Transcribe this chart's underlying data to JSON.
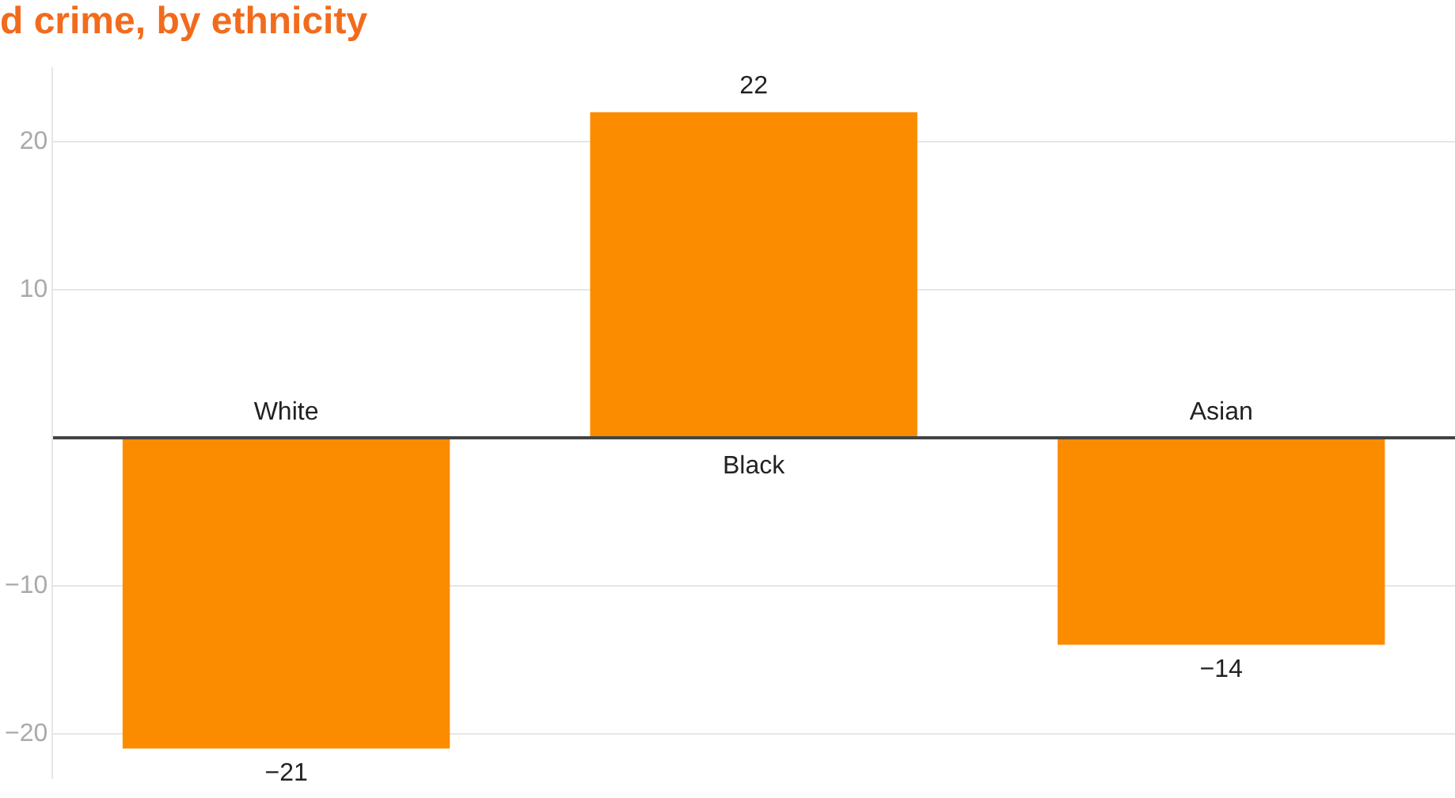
{
  "chart_data": {
    "type": "bar",
    "title": "d crime, by ethnicity",
    "categories": [
      "White",
      "Black",
      "Asian"
    ],
    "values": [
      -21,
      22,
      -14
    ],
    "color": "#fb8c00",
    "ylim": [
      -23,
      25
    ],
    "yticks": [
      -20,
      -10,
      {
        "value": 0,
        "label": null
      },
      10,
      20
    ],
    "grid": "y",
    "data_labels": true
  }
}
